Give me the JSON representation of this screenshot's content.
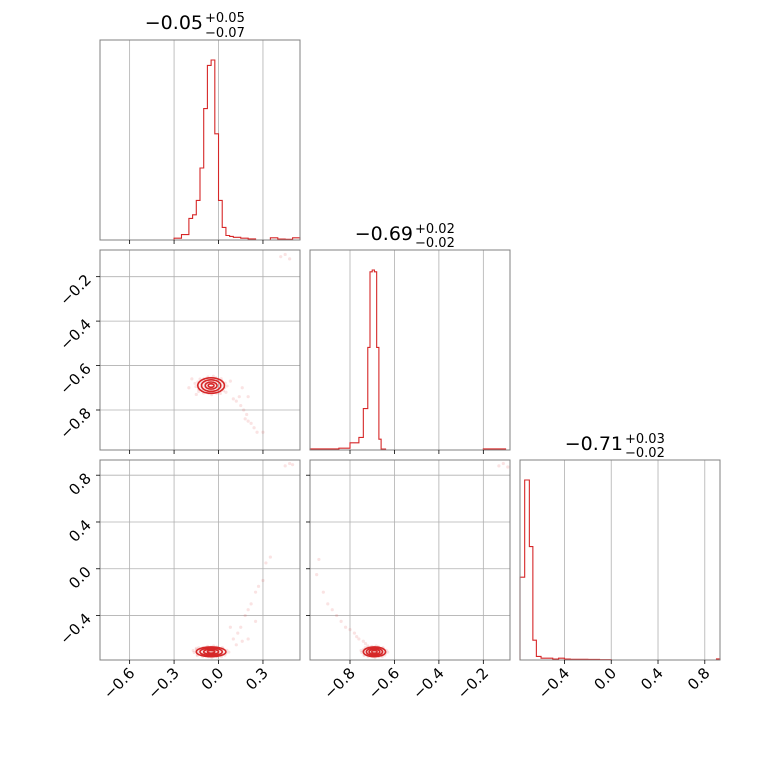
{
  "chart_data": {
    "type": "corner",
    "color": "#d62728",
    "grid": true,
    "parameters": [
      {
        "index": 0,
        "title_main": "−0.05",
        "title_plus": "+0.05",
        "title_minus": "−0.07",
        "median": -0.05,
        "err_plus": 0.05,
        "err_minus": 0.07,
        "range": [
          -0.8,
          0.55
        ],
        "ticks": [
          -0.6,
          -0.3,
          0.0,
          0.3
        ],
        "tick_labels": [
          "−0.6",
          "−0.3",
          "0.0",
          "0.3"
        ],
        "histogram": {
          "bin_edges": [
            -0.8,
            -0.75,
            -0.7,
            -0.65,
            -0.6,
            -0.55,
            -0.5,
            -0.45,
            -0.4,
            -0.35,
            -0.3,
            -0.25,
            -0.2,
            -0.175,
            -0.15,
            -0.125,
            -0.1,
            -0.075,
            -0.05,
            -0.025,
            0.0,
            0.025,
            0.05,
            0.075,
            0.1,
            0.15,
            0.2,
            0.25,
            0.3,
            0.35,
            0.4,
            0.45,
            0.5,
            0.55
          ],
          "heights": [
            0,
            0,
            0,
            0,
            0,
            0,
            0,
            0,
            0,
            0,
            0.01,
            0.03,
            0.12,
            0.14,
            0.22,
            0.4,
            0.73,
            0.97,
            1.0,
            0.59,
            0.22,
            0.07,
            0.025,
            0.02,
            0.015,
            0.01,
            0.006,
            0,
            0,
            0.012,
            0.005,
            0.004,
            0.012
          ]
        }
      },
      {
        "index": 1,
        "title_main": "−0.69",
        "title_plus": "+0.02",
        "title_minus": "−0.02",
        "median": -0.69,
        "err_plus": 0.02,
        "err_minus": 0.02,
        "range": [
          -0.98,
          -0.08
        ],
        "ticks": [
          -0.8,
          -0.6,
          -0.4,
          -0.2
        ],
        "tick_labels": [
          "−0.8",
          "−0.6",
          "−0.4",
          "−0.2"
        ],
        "histogram": {
          "bin_edges": [
            -0.98,
            -0.9,
            -0.85,
            -0.8,
            -0.76,
            -0.74,
            -0.72,
            -0.71,
            -0.7,
            -0.69,
            -0.68,
            -0.67,
            -0.66,
            -0.64,
            -0.6,
            -0.5,
            -0.4,
            -0.3,
            -0.2,
            -0.15,
            -0.1,
            -0.08
          ],
          "heights": [
            0.006,
            0.006,
            0.01,
            0.04,
            0.07,
            0.23,
            0.57,
            0.99,
            1.0,
            0.99,
            0.57,
            0.06,
            0.005,
            0,
            0,
            0,
            0,
            0,
            0.006,
            0.006,
            0
          ]
        }
      },
      {
        "index": 2,
        "title_main": "−0.71",
        "title_plus": "+0.03",
        "title_minus": "−0.02",
        "median": -0.71,
        "err_plus": 0.03,
        "err_minus": 0.02,
        "range": [
          -0.78,
          0.93
        ],
        "ticks": [
          -0.4,
          0.0,
          0.4,
          0.8
        ],
        "tick_labels": [
          "−0.4",
          "0.0",
          "0.4",
          "0.8"
        ],
        "y_ticks": [
          -0.4,
          0.0,
          0.4,
          0.8
        ],
        "y_tick_labels": [
          "−0.4",
          "0.0",
          "0.4",
          "0.8"
        ],
        "histogram": {
          "bin_edges": [
            -0.78,
            -0.74,
            -0.7,
            -0.67,
            -0.64,
            -0.6,
            -0.5,
            -0.45,
            -0.4,
            -0.35,
            -0.2,
            -0.1,
            0.0,
            0.5,
            0.9,
            0.93
          ],
          "heights": [
            0.46,
            1.0,
            0.63,
            0.11,
            0.02,
            0.01,
            0.005,
            0.01,
            0.005,
            0.004,
            0.003,
            0.002,
            0,
            0,
            0.006
          ]
        }
      }
    ],
    "y_axis_ticks_row1": [
      -0.8,
      -0.6,
      -0.4,
      -0.2
    ],
    "y_axis_tick_labels_row1": [
      "−0.8",
      "−0.6",
      "−0.4",
      "−0.2"
    ],
    "joint": [
      {
        "x_param": 0,
        "y_param": 1,
        "center": [
          -0.05,
          -0.69
        ],
        "contour_radii": [
          [
            0.02,
            0.008
          ],
          [
            0.04,
            0.016
          ],
          [
            0.065,
            0.026
          ],
          [
            0.09,
            0.035
          ]
        ],
        "scatter": [
          [
            0.15,
            -0.78
          ],
          [
            0.17,
            -0.8
          ],
          [
            0.19,
            -0.82
          ],
          [
            0.2,
            -0.85
          ],
          [
            0.22,
            -0.86
          ],
          [
            0.24,
            -0.88
          ],
          [
            0.18,
            -0.84
          ],
          [
            0.26,
            -0.9
          ],
          [
            0.3,
            -0.9
          ],
          [
            0.12,
            -0.76
          ],
          [
            0.14,
            -0.74
          ],
          [
            0.1,
            -0.75
          ],
          [
            0.42,
            -0.11
          ],
          [
            0.45,
            -0.1
          ],
          [
            0.48,
            -0.12
          ],
          [
            -0.2,
            -0.7
          ],
          [
            -0.18,
            -0.66
          ],
          [
            -0.15,
            -0.73
          ],
          [
            0.05,
            -0.72
          ],
          [
            0.08,
            -0.67
          ],
          [
            0.16,
            -0.7
          ],
          [
            0.2,
            -0.74
          ]
        ]
      },
      {
        "x_param": 0,
        "y_param": 2,
        "center": [
          -0.05,
          -0.71
        ],
        "contour_radii": [
          [
            0.025,
            0.012
          ],
          [
            0.05,
            0.022
          ],
          [
            0.075,
            0.032
          ],
          [
            0.1,
            0.042
          ]
        ],
        "scatter": [
          [
            0.1,
            -0.6
          ],
          [
            0.13,
            -0.55
          ],
          [
            0.15,
            -0.5
          ],
          [
            0.18,
            -0.4
          ],
          [
            0.2,
            -0.35
          ],
          [
            0.22,
            -0.3
          ],
          [
            0.25,
            -0.2
          ],
          [
            0.27,
            -0.15
          ],
          [
            0.3,
            -0.1
          ],
          [
            0.32,
            0.05
          ],
          [
            0.35,
            0.1
          ],
          [
            0.45,
            0.88
          ],
          [
            0.48,
            0.9
          ],
          [
            0.5,
            0.89
          ],
          [
            0.08,
            -0.5
          ],
          [
            0.12,
            -0.65
          ],
          [
            -0.15,
            -0.68
          ],
          [
            0.2,
            -0.6
          ],
          [
            0.25,
            -0.45
          ],
          [
            0.16,
            -0.62
          ]
        ]
      },
      {
        "x_param": 1,
        "y_param": 2,
        "center": [
          -0.69,
          -0.71
        ],
        "contour_radii": [
          [
            0.012,
            0.012
          ],
          [
            0.024,
            0.022
          ],
          [
            0.036,
            0.032
          ],
          [
            0.05,
            0.042
          ]
        ],
        "scatter": [
          [
            -0.95,
            -0.05
          ],
          [
            -0.94,
            0.08
          ],
          [
            -0.92,
            -0.2
          ],
          [
            -0.9,
            -0.3
          ],
          [
            -0.88,
            -0.35
          ],
          [
            -0.86,
            -0.4
          ],
          [
            -0.84,
            -0.45
          ],
          [
            -0.82,
            -0.5
          ],
          [
            -0.8,
            -0.52
          ],
          [
            -0.78,
            -0.55
          ],
          [
            -0.77,
            -0.58
          ],
          [
            -0.76,
            -0.6
          ],
          [
            -0.74,
            -0.62
          ],
          [
            -0.73,
            -0.64
          ],
          [
            -0.72,
            -0.66
          ],
          [
            -0.13,
            0.88
          ],
          [
            -0.11,
            0.9
          ],
          [
            -0.09,
            0.87
          ]
        ]
      }
    ]
  }
}
